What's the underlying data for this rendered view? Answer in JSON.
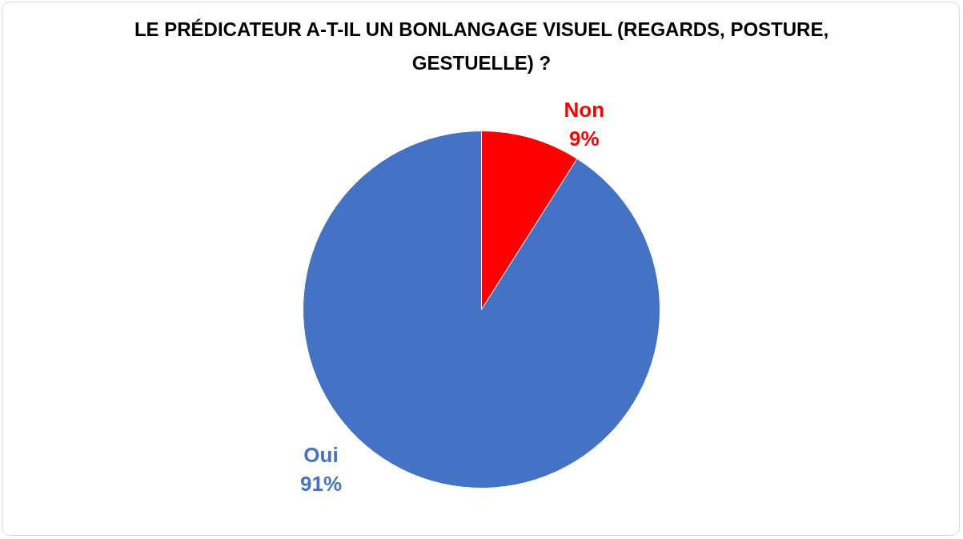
{
  "chart_data": {
    "type": "pie",
    "title": "LE PRÉDICATEUR A-T-IL UN BONLANGAGE VISUEL (REGARDS, POSTURE, GESTUELLE) ?",
    "categories": [
      "Non",
      "Oui"
    ],
    "values": [
      9,
      91
    ],
    "colors": [
      "#ff0000",
      "#4472c4"
    ],
    "value_labels": [
      "9%",
      "91%"
    ],
    "legend": false
  }
}
